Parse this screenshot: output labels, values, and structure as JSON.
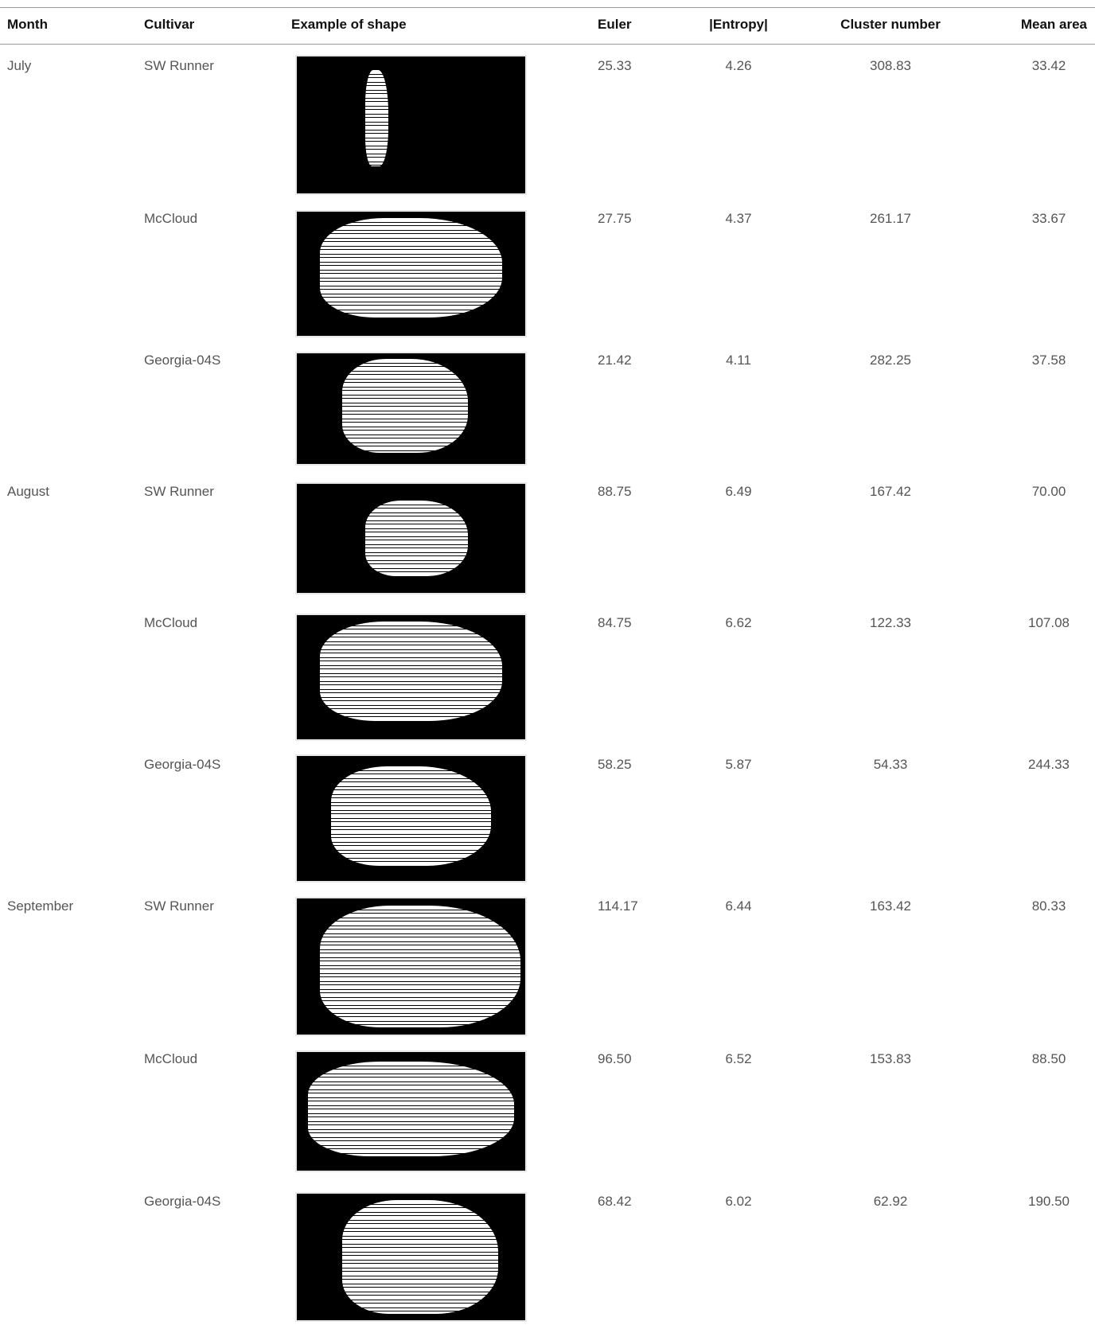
{
  "table": {
    "columns": [
      "Month",
      "Cultivar",
      "Example of shape",
      "Euler",
      "|Entropy|",
      "Cluster number",
      "Mean area"
    ],
    "groups": [
      {
        "month": "July",
        "rows": [
          {
            "cultivar": "SW Runner",
            "euler": "25.33",
            "entropy": "4.26",
            "cluster": "308.83",
            "area": "33.42"
          },
          {
            "cultivar": "McCloud",
            "euler": "27.75",
            "entropy": "4.37",
            "cluster": "261.17",
            "area": "33.67"
          },
          {
            "cultivar": "Georgia-04S",
            "euler": "21.42",
            "entropy": "4.11",
            "cluster": "282.25",
            "area": "37.58"
          }
        ]
      },
      {
        "month": "August",
        "rows": [
          {
            "cultivar": "SW Runner",
            "euler": "88.75",
            "entropy": "6.49",
            "cluster": "167.42",
            "area": "70.00"
          },
          {
            "cultivar": "McCloud",
            "euler": "84.75",
            "entropy": "6.62",
            "cluster": "122.33",
            "area": "107.08"
          },
          {
            "cultivar": "Georgia-04S",
            "euler": "58.25",
            "entropy": "5.87",
            "cluster": "54.33",
            "area": "244.33"
          }
        ]
      },
      {
        "month": "September",
        "rows": [
          {
            "cultivar": "SW Runner",
            "euler": "114.17",
            "entropy": "6.44",
            "cluster": "163.42",
            "area": "80.33"
          },
          {
            "cultivar": "McCloud",
            "euler": "96.50",
            "entropy": "6.52",
            "cluster": "153.83",
            "area": "88.50"
          },
          {
            "cultivar": "Georgia-04S",
            "euler": "68.42",
            "entropy": "6.02",
            "cluster": "62.92",
            "area": "190.50"
          }
        ]
      }
    ]
  }
}
